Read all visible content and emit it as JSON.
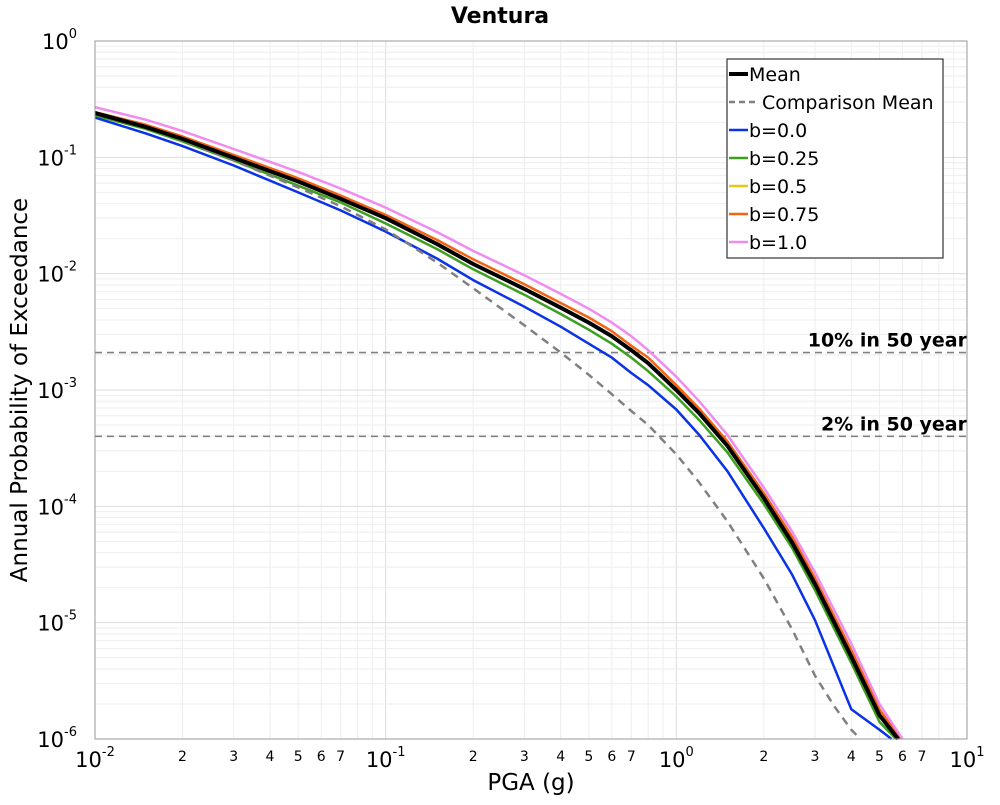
{
  "chart_data": {
    "type": "line",
    "title": "Ventura",
    "xlabel": "PGA (g)",
    "ylabel": "Annual Probability of Exceedance",
    "x_scale": "log",
    "y_scale": "log",
    "xlim": [
      0.01,
      10
    ],
    "ylim": [
      1e-06,
      1
    ],
    "grid": true,
    "legend_position": "top-right",
    "x_ticks": [
      {
        "value": 0.01,
        "base": "10",
        "exp": "-2"
      },
      {
        "value": 0.1,
        "base": "10",
        "exp": "-1"
      },
      {
        "value": 1,
        "base": "10",
        "exp": "0"
      },
      {
        "value": 10,
        "base": "10",
        "exp": "1"
      }
    ],
    "x_minor_labels": [
      "2",
      "3",
      "4",
      "5",
      "6",
      "7"
    ],
    "y_ticks": [
      {
        "value": 1,
        "base": "10",
        "exp": "0"
      },
      {
        "value": 0.1,
        "base": "10",
        "exp": "-1"
      },
      {
        "value": 0.01,
        "base": "10",
        "exp": "-2"
      },
      {
        "value": 0.001,
        "base": "10",
        "exp": "-3"
      },
      {
        "value": 0.0001,
        "base": "10",
        "exp": "-4"
      },
      {
        "value": 1e-05,
        "base": "10",
        "exp": "-5"
      },
      {
        "value": 1e-06,
        "base": "10",
        "exp": "-6"
      }
    ],
    "reference_lines": [
      {
        "label": "10% in 50 year",
        "y": 0.0021,
        "color": "#808080"
      },
      {
        "label": "2% in 50 year",
        "y": 0.0004,
        "color": "#808080"
      }
    ],
    "series": [
      {
        "name": "b=0.0",
        "color": "#0a32e6",
        "width": 2.5,
        "dash": "",
        "x": [
          0.01,
          0.015,
          0.02,
          0.03,
          0.05,
          0.07,
          0.1,
          0.15,
          0.2,
          0.3,
          0.4,
          0.5,
          0.6,
          0.7,
          0.8,
          1.0,
          1.2,
          1.5,
          2.0,
          2.5,
          3.0,
          4.0,
          5.0,
          5.5
        ],
        "y": [
          0.22,
          0.16,
          0.125,
          0.085,
          0.05,
          0.035,
          0.023,
          0.0135,
          0.0088,
          0.0052,
          0.0035,
          0.0025,
          0.0019,
          0.0014,
          0.0011,
          0.00068,
          0.00041,
          0.0002,
          6.5e-05,
          2.6e-05,
          1.05e-05,
          1.8e-06,
          1.2e-06,
          1e-06
        ]
      },
      {
        "name": "b=0.25",
        "color": "#3ca01e",
        "width": 2.5,
        "dash": "",
        "x": [
          0.01,
          0.015,
          0.02,
          0.03,
          0.05,
          0.07,
          0.1,
          0.15,
          0.2,
          0.3,
          0.4,
          0.5,
          0.6,
          0.7,
          0.8,
          1.0,
          1.2,
          1.5,
          2.0,
          2.5,
          3.0,
          4.0,
          5.0,
          5.7
        ],
        "y": [
          0.23,
          0.175,
          0.137,
          0.094,
          0.057,
          0.041,
          0.027,
          0.0163,
          0.0109,
          0.0066,
          0.0045,
          0.0033,
          0.0025,
          0.0019,
          0.00145,
          0.00088,
          0.00055,
          0.00029,
          0.000105,
          4.4e-05,
          1.9e-05,
          4.5e-06,
          1.4e-06,
          1e-06
        ]
      },
      {
        "name": "b=0.5",
        "color": "#e6c814",
        "width": 2.5,
        "dash": "",
        "x": [
          0.01,
          0.015,
          0.02,
          0.03,
          0.05,
          0.07,
          0.1,
          0.15,
          0.2,
          0.3,
          0.4,
          0.5,
          0.6,
          0.7,
          0.8,
          1.0,
          1.2,
          1.5,
          2.0,
          2.5,
          3.0,
          4.0,
          5.0,
          5.8
        ],
        "y": [
          0.24,
          0.183,
          0.145,
          0.1,
          0.062,
          0.044,
          0.03,
          0.018,
          0.0122,
          0.0074,
          0.0051,
          0.0038,
          0.0029,
          0.0022,
          0.0017,
          0.001,
          0.00063,
          0.00033,
          0.00012,
          5e-05,
          2.2e-05,
          5.2e-06,
          1.6e-06,
          1e-06
        ]
      },
      {
        "name": "b=0.75",
        "color": "#f06414",
        "width": 2.5,
        "dash": "",
        "x": [
          0.01,
          0.015,
          0.02,
          0.03,
          0.05,
          0.07,
          0.1,
          0.15,
          0.2,
          0.3,
          0.4,
          0.5,
          0.6,
          0.7,
          0.8,
          1.0,
          1.2,
          1.5,
          2.0,
          2.5,
          3.0,
          4.0,
          5.0,
          5.9
        ],
        "y": [
          0.245,
          0.19,
          0.151,
          0.105,
          0.066,
          0.047,
          0.032,
          0.0195,
          0.0133,
          0.0081,
          0.0056,
          0.0042,
          0.0032,
          0.0024,
          0.0019,
          0.0011,
          0.00069,
          0.00036,
          0.00013,
          5.5e-05,
          2.4e-05,
          5.8e-06,
          1.8e-06,
          1e-06
        ]
      },
      {
        "name": "b=1.0",
        "color": "#f08cf0",
        "width": 2.5,
        "dash": "",
        "x": [
          0.01,
          0.015,
          0.02,
          0.03,
          0.05,
          0.07,
          0.1,
          0.15,
          0.2,
          0.3,
          0.4,
          0.5,
          0.6,
          0.7,
          0.8,
          1.0,
          1.2,
          1.5,
          2.0,
          2.5,
          3.0,
          4.0,
          5.0,
          6.0
        ],
        "y": [
          0.27,
          0.21,
          0.168,
          0.118,
          0.075,
          0.054,
          0.037,
          0.0228,
          0.0157,
          0.0097,
          0.0067,
          0.005,
          0.0038,
          0.0029,
          0.0022,
          0.0013,
          0.0008,
          0.00041,
          0.000145,
          6.1e-05,
          2.7e-05,
          6.6e-06,
          2e-06,
          1e-06
        ]
      },
      {
        "name": "Comparison Mean",
        "color": "#808080",
        "width": 2.5,
        "dash": "8,6",
        "x": [
          0.01,
          0.015,
          0.02,
          0.03,
          0.05,
          0.07,
          0.1,
          0.15,
          0.2,
          0.3,
          0.4,
          0.5,
          0.6,
          0.7,
          0.8,
          1.0,
          1.2,
          1.5,
          2.0,
          2.5,
          3.0,
          3.5,
          4.0,
          4.3
        ],
        "y": [
          0.235,
          0.18,
          0.14,
          0.094,
          0.055,
          0.038,
          0.024,
          0.0125,
          0.0075,
          0.0036,
          0.0021,
          0.00135,
          0.00092,
          0.00066,
          0.0005,
          0.00028,
          0.00016,
          7.4e-05,
          2.4e-05,
          8.8e-06,
          3.5e-06,
          1.9e-06,
          1.2e-06,
          1e-06
        ]
      },
      {
        "name": "Mean",
        "color": "#000000",
        "width": 4,
        "dash": "",
        "x": [
          0.01,
          0.015,
          0.02,
          0.03,
          0.05,
          0.07,
          0.1,
          0.15,
          0.2,
          0.3,
          0.4,
          0.5,
          0.6,
          0.7,
          0.8,
          1.0,
          1.2,
          1.5,
          2.0,
          2.5,
          3.0,
          4.0,
          5.0,
          5.8
        ],
        "y": [
          0.24,
          0.182,
          0.144,
          0.099,
          0.062,
          0.044,
          0.03,
          0.018,
          0.0121,
          0.0074,
          0.0051,
          0.0038,
          0.0029,
          0.0022,
          0.0017,
          0.001,
          0.00063,
          0.00033,
          0.000118,
          4.9e-05,
          2.15e-05,
          5.1e-06,
          1.6e-06,
          1e-06
        ]
      }
    ],
    "legend_order": [
      "Mean",
      "Comparison Mean",
      "b=0.0",
      "b=0.25",
      "b=0.5",
      "b=0.75",
      "b=1.0"
    ]
  }
}
